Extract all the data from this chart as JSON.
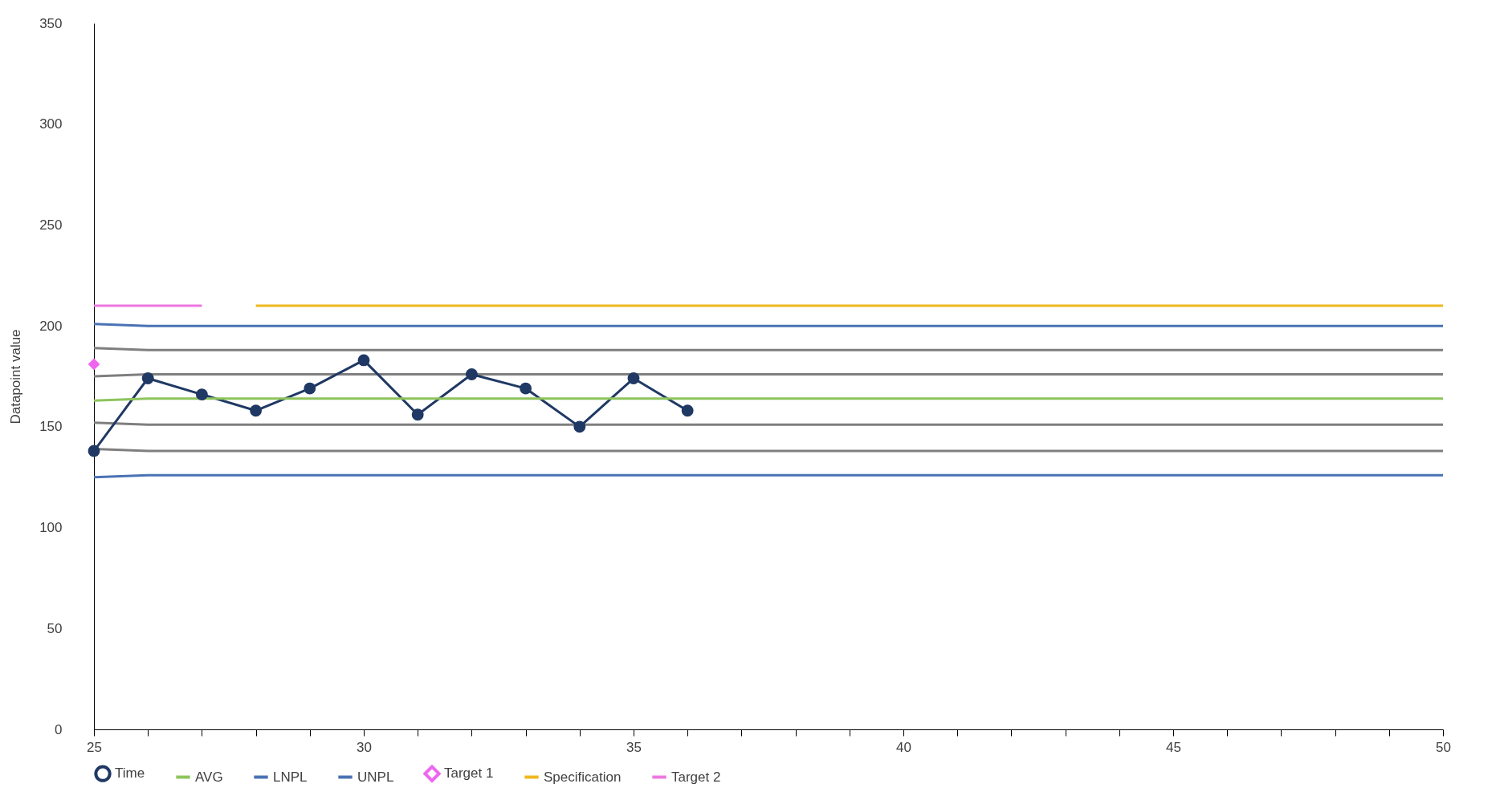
{
  "chart_data": {
    "type": "line",
    "ylabel": "Datapoint value",
    "xlim": [
      25,
      50
    ],
    "ylim": [
      0,
      350
    ],
    "xticks": [
      25,
      {
        "value": 26,
        "label": null
      },
      {
        "value": 27,
        "label": null
      },
      {
        "value": 28,
        "label": null
      },
      {
        "value": 29,
        "label": null
      },
      30,
      {
        "value": 31,
        "label": null
      },
      {
        "value": 32,
        "label": null
      },
      {
        "value": 33,
        "label": null
      },
      {
        "value": 34,
        "label": null
      },
      35,
      {
        "value": 36,
        "label": null
      },
      {
        "value": 37,
        "label": null
      },
      {
        "value": 38,
        "label": null
      },
      {
        "value": 39,
        "label": null
      },
      40,
      {
        "value": 41,
        "label": null
      },
      {
        "value": 42,
        "label": null
      },
      {
        "value": 43,
        "label": null
      },
      {
        "value": 44,
        "label": null
      },
      45,
      {
        "value": 46,
        "label": null
      },
      {
        "value": 47,
        "label": null
      },
      {
        "value": 48,
        "label": null
      },
      {
        "value": 49,
        "label": null
      },
      50
    ],
    "yticks": [
      0,
      50,
      100,
      150,
      200,
      250,
      300,
      350
    ],
    "grid": false,
    "legend": "bottom",
    "line_style": "solid",
    "series": [
      {
        "type": "line",
        "color": "#7f7f7f",
        "x": [
          25,
          26,
          50
        ],
        "values": [
          189,
          188,
          188
        ]
      },
      {
        "type": "line",
        "color": "#7f7f7f",
        "x": [
          25,
          26,
          50
        ],
        "values": [
          175,
          176,
          176
        ]
      },
      {
        "type": "line",
        "color": "#7f7f7f",
        "x": [
          25,
          26,
          50
        ],
        "values": [
          152,
          151,
          151
        ]
      },
      {
        "type": "line",
        "color": "#7f7f7f",
        "x": [
          25,
          26,
          50
        ],
        "values": [
          139,
          138,
          138
        ]
      },
      {
        "name": "Time",
        "type": "line",
        "marker": "circle",
        "color": "#1f3864",
        "x": [
          25,
          26,
          27,
          28,
          29,
          30,
          31,
          32,
          33,
          34,
          35,
          36
        ],
        "values": [
          138,
          174,
          166,
          158,
          169,
          183,
          156,
          176,
          169,
          150,
          174,
          158
        ]
      },
      {
        "name": "AVG",
        "type": "line",
        "color": "#8dc45c",
        "x": [
          25,
          26,
          50
        ],
        "values": [
          163,
          164,
          164
        ]
      },
      {
        "name": "LNPL",
        "type": "line",
        "color": "#4a72b4",
        "x": [
          25,
          26,
          50
        ],
        "values": [
          125,
          126,
          126
        ]
      },
      {
        "name": "UNPL",
        "type": "line",
        "color": "#4a72b4",
        "x": [
          25,
          26,
          50
        ],
        "values": [
          201,
          200,
          200
        ]
      },
      {
        "name": "Target 1",
        "type": "scatter",
        "marker": "diamond",
        "color": "#ee66ee",
        "x": [
          25
        ],
        "values": [
          181
        ]
      },
      {
        "name": "Specification",
        "type": "line",
        "color": "#f0b81e",
        "x": [
          28,
          50
        ],
        "values": [
          210,
          210
        ]
      },
      {
        "name": "Target 2",
        "type": "line",
        "color": "#ee77e0",
        "x": [
          25,
          27
        ],
        "values": [
          210,
          210
        ]
      }
    ]
  }
}
